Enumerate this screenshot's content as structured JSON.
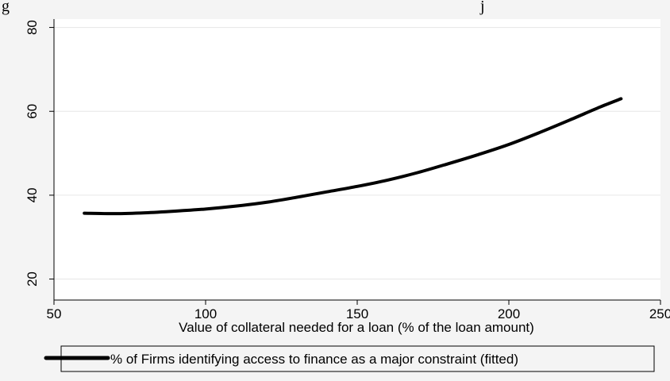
{
  "header_fragment": {
    "left": "g",
    "right": "j"
  },
  "chart_data": {
    "type": "line",
    "xlabel": "Value of collateral needed for a loan (% of the loan amount)",
    "ylabel": "",
    "xlim": [
      50,
      250
    ],
    "ylim": [
      15,
      82
    ],
    "xticks": [
      50,
      100,
      150,
      200,
      250
    ],
    "yticks": [
      20,
      40,
      60,
      80
    ],
    "grid": true,
    "legend_position": "bottom",
    "colors": {
      "line": "#000000",
      "grid": "#e6e6e6",
      "plot_bg": "#ffffff",
      "outer_bg": "#f4f4f4"
    },
    "series": [
      {
        "name": "% of Firms identifying access to finance as a major constraint (fitted)",
        "x": [
          60,
          70,
          80,
          90,
          100,
          110,
          120,
          130,
          140,
          150,
          160,
          170,
          180,
          190,
          200,
          210,
          220,
          230,
          237
        ],
        "y": [
          35.7,
          35.6,
          35.8,
          36.2,
          36.7,
          37.4,
          38.3,
          39.5,
          40.8,
          42.1,
          43.6,
          45.4,
          47.5,
          49.7,
          52.1,
          54.9,
          57.9,
          61.0,
          63.0
        ]
      }
    ]
  }
}
